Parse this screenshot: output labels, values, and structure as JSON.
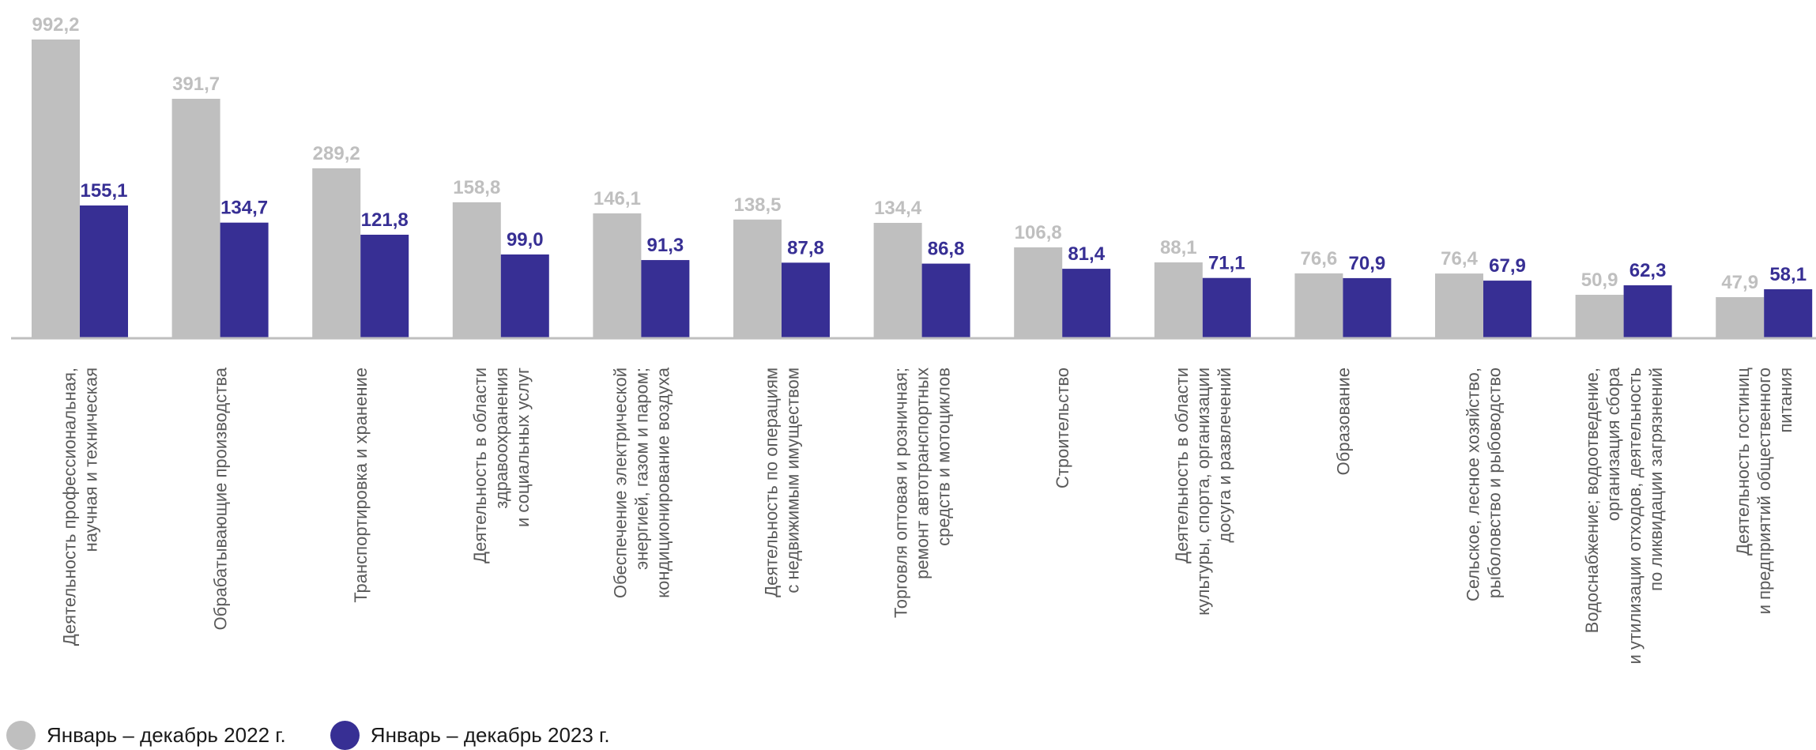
{
  "chart_data": {
    "type": "bar",
    "categories": [
      [
        "Деятельность профессиональная,",
        "научная и техническая"
      ],
      [
        "Обрабатывающие производства"
      ],
      [
        "Транспортировка и хранение"
      ],
      [
        "Деятельность в области",
        "здравоохранения",
        "и социальных услуг"
      ],
      [
        "Обеспечение электрической",
        "энергией, газом и паром;",
        "кондиционирование воздуха"
      ],
      [
        "Деятельность по операциям",
        "с недвижимым имуществом"
      ],
      [
        "Торговля оптовая и розничная;",
        "ремонт автотранспортных",
        "средств и мотоциклов"
      ],
      [
        "Строительство"
      ],
      [
        "Деятельность в области",
        "культуры, спорта, организации",
        "досуга  и развлечений"
      ],
      [
        "Образование"
      ],
      [
        "Сельское, лесное хозяйство,",
        "рыболовство и рыбоводство"
      ],
      [
        "Водоснабжение; водоотведение,",
        "организация сбора",
        "и утилизации отходов, деятельность",
        "по ликвидации загрязнений"
      ],
      [
        "Деятельность гостиниц",
        "и предприятий общественного",
        "питания"
      ]
    ],
    "series": [
      {
        "name": "Январь – декабрь 2022 г.",
        "color": "#bfbfbf",
        "values": [
          992.2,
          391.7,
          289.2,
          158.8,
          146.1,
          138.5,
          134.4,
          106.8,
          88.1,
          76.6,
          76.4,
          50.9,
          47.9
        ],
        "labels": [
          "992,2",
          "391,7",
          "289,2",
          "158,8",
          "146,1",
          "138,5",
          "134,4",
          "106,8",
          "88,1",
          "76,6",
          "76,4",
          "50,9",
          "47,9"
        ]
      },
      {
        "name": "Январь – декабрь 2023 г.",
        "color": "#372f94",
        "values": [
          155.1,
          134.7,
          121.8,
          99.0,
          91.3,
          87.8,
          86.8,
          81.4,
          71.1,
          70.9,
          67.9,
          62.3,
          58.1
        ],
        "labels": [
          "155,1",
          "134,7",
          "121,8",
          "99,0",
          "91,3",
          "87,8",
          "86,8",
          "81,4",
          "71,1",
          "70,9",
          "67,9",
          "62,3",
          "58,1"
        ]
      }
    ],
    "axis_scale": "nonlinear",
    "axis_line_color": "#bfbfbf",
    "legend_position": "bottom-left",
    "grid": false
  }
}
